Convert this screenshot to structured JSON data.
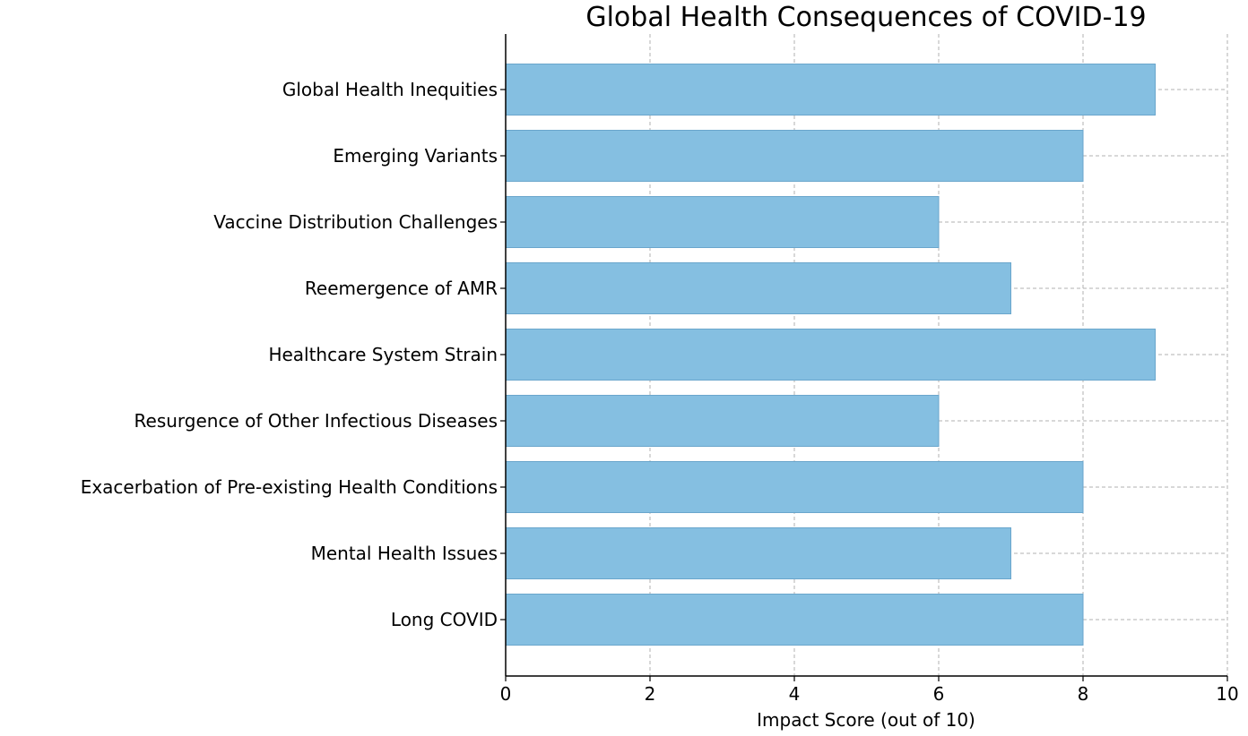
{
  "chart_data": {
    "type": "bar",
    "orientation": "horizontal",
    "title": "Global Health Consequences of COVID-19",
    "xlabel": "Impact Score (out of 10)",
    "ylabel": "",
    "categories": [
      "Long COVID",
      "Mental Health Issues",
      "Exacerbation of Pre-existing Health Conditions",
      "Resurgence of Other Infectious Diseases",
      "Healthcare System Strain",
      "Reemergence of AMR",
      "Vaccine Distribution Challenges",
      "Emerging Variants",
      "Global Health Inequities"
    ],
    "values": [
      8,
      7,
      8,
      6,
      9,
      7,
      6,
      8,
      9
    ],
    "xlim": [
      0,
      10
    ],
    "xticks": [
      "0",
      "2",
      "4",
      "6",
      "8",
      "10"
    ],
    "grid": true,
    "grid_style": "dashed",
    "bar_color": "#85bfe1",
    "bar_edge_color": "#6aa6cc"
  }
}
